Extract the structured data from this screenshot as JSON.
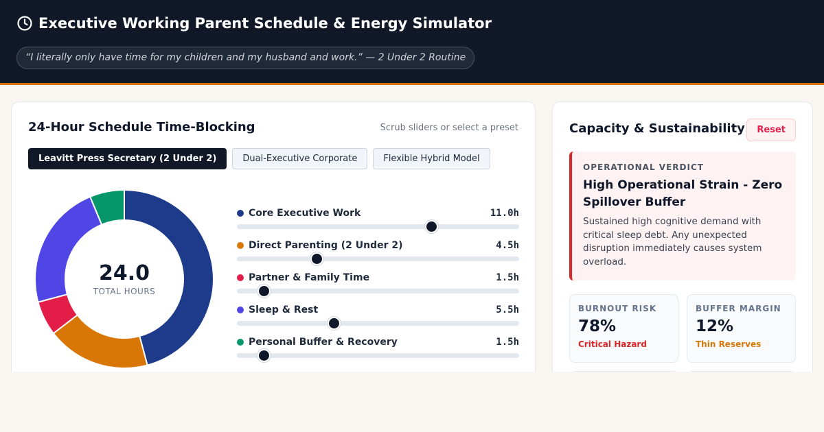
{
  "header": {
    "title": "Executive Working Parent Schedule & Energy Simulator",
    "quote": "“I literally only have time for my children and my husband and work.” — 2 Under 2 Routine"
  },
  "schedule": {
    "title": "24-Hour Schedule Time-Blocking",
    "hint": "Scrub sliders or select a preset",
    "presets": [
      {
        "label": "Leavitt Press Secretary (2 Under 2)",
        "active": true
      },
      {
        "label": "Dual-Executive Corporate",
        "active": false
      },
      {
        "label": "Flexible Hybrid Model",
        "active": false
      }
    ],
    "total_value": "24.0",
    "total_label": "TOTAL HOURS",
    "slider_max_hours": 16,
    "blocks": [
      {
        "name": "Core Executive Work",
        "value_label": "11.0h",
        "hours": 11.0,
        "color": "#1e3a8a"
      },
      {
        "name": "Direct Parenting (2 Under 2)",
        "value_label": "4.5h",
        "hours": 4.5,
        "color": "#d97706"
      },
      {
        "name": "Partner & Family Time",
        "value_label": "1.5h",
        "hours": 1.5,
        "color": "#e11d48"
      },
      {
        "name": "Sleep & Rest",
        "value_label": "5.5h",
        "hours": 5.5,
        "color": "#4f46e5"
      },
      {
        "name": "Personal Buffer & Recovery",
        "value_label": "1.5h",
        "hours": 1.5,
        "color": "#059669"
      }
    ]
  },
  "capacity": {
    "title": "Capacity & Sustainability",
    "reset_label": "Reset",
    "verdict": {
      "kicker": "OPERATIONAL VERDICT",
      "title": "High Operational Strain - Zero Spillover Buffer",
      "body": "Sustained high cognitive demand with critical sleep debt. Any unexpected disruption immediately causes system overload."
    },
    "stats": [
      {
        "label": "BURNOUT RISK",
        "value": "78%",
        "note": "Critical Hazard",
        "note_color": "#dc2626"
      },
      {
        "label": "BUFFER MARGIN",
        "value": "12%",
        "note": "Thin Reserves",
        "note_color": "#d97706"
      }
    ]
  }
}
